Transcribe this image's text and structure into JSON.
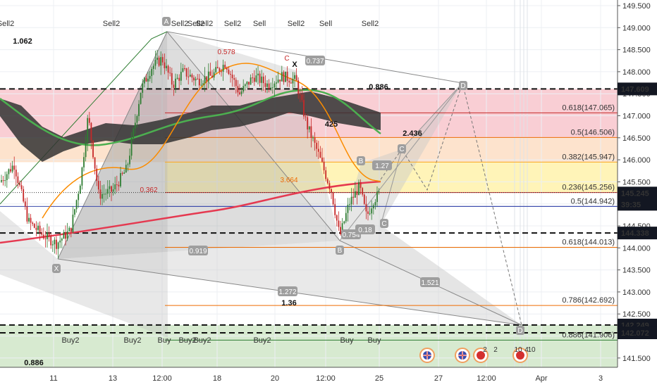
{
  "chart_data": {
    "type": "candlestick",
    "price_axis": {
      "ylim": [
        141.25,
        149.6
      ],
      "ticks": [
        "149.500",
        "149.000",
        "148.500",
        "148.000",
        "147.500",
        "147.000",
        "146.500",
        "146.000",
        "145.500",
        "145.000",
        "144.500",
        "144.000",
        "143.500",
        "143.000",
        "142.500",
        "142.000",
        "141.500"
      ]
    },
    "time_axis": {
      "ticks": [
        "11",
        "13",
        "12:00",
        "18",
        "20",
        "12:00",
        "25",
        "27",
        "12:00",
        "Apr",
        "3"
      ]
    },
    "price_labels": [
      {
        "value": "147.609",
        "price": 147.609,
        "style": "dark"
      },
      {
        "value": "145.245",
        "price": 145.245,
        "style": "dark"
      },
      {
        "value": "39:35",
        "price": 144.99,
        "style": "dark"
      },
      {
        "value": "144.338",
        "price": 144.338,
        "style": "dark"
      },
      {
        "value": "142.249",
        "price": 142.249,
        "style": "dark"
      },
      {
        "value": "142.072",
        "price": 142.072,
        "style": "dark"
      }
    ],
    "fib_levels": [
      {
        "label": "0.618(147.065)",
        "price": 147.065,
        "color": "#c62828"
      },
      {
        "label": "0.5(146.506)",
        "price": 146.506,
        "color": "#ef6c00"
      },
      {
        "label": "0.382(145.947)",
        "price": 145.947,
        "color": "#f9a825"
      },
      {
        "label": "0.236(145.256)",
        "price": 145.256,
        "color": "#c62828"
      },
      {
        "label": "0.5(144.942)",
        "price": 144.942,
        "color": "#3949ab"
      },
      {
        "label": "0.618(144.013)",
        "price": 144.013,
        "color": "#ef6c00"
      },
      {
        "label": "0.786(142.692)",
        "price": 142.692,
        "color": "#ef6c00"
      },
      {
        "label": "0.886(141.906)",
        "price": 141.906,
        "color": "#2e7d32"
      }
    ],
    "dashed_levels": [
      147.609,
      144.338,
      142.249,
      142.072
    ],
    "ratio_labels": [
      "0.737",
      "0.919",
      "1.272",
      "1.521",
      "1.27",
      "0.754",
      "0.18"
    ],
    "text_labels": [
      "1.062",
      "0.578",
      "C",
      "X",
      "0.886",
      "425",
      "2.436",
      "3.664",
      "0.362",
      "1.36",
      "0.886"
    ],
    "pattern_points": [
      "A",
      "X",
      "B",
      "C",
      "D",
      "X",
      "B",
      "C",
      "D"
    ],
    "signals_sell": [
      "Sell2",
      "Sell2",
      "Sell2",
      "Sell2",
      "Sell2",
      "Sell2",
      "Sell",
      "Sell2",
      "Sell",
      "Sell2"
    ],
    "signals_buy": [
      "Buy2",
      "Buy2",
      "Buy",
      "Buy2",
      "Buy2",
      "Buy2",
      "Buy",
      "Buy"
    ],
    "event_counts": [
      "2",
      "2",
      "10",
      "4",
      "10"
    ],
    "colors": {
      "up": "#2e7d32",
      "down": "#c62828",
      "ema_red": "#e53950",
      "ema_green": "#4caf50",
      "ema_orange": "#fb8c00",
      "band_dark": "#333333",
      "fib_red_zone": "#f8c9cf",
      "fib_yellow_zone": "#fff4b8",
      "fib_green_zone": "#d7ead0"
    }
  }
}
